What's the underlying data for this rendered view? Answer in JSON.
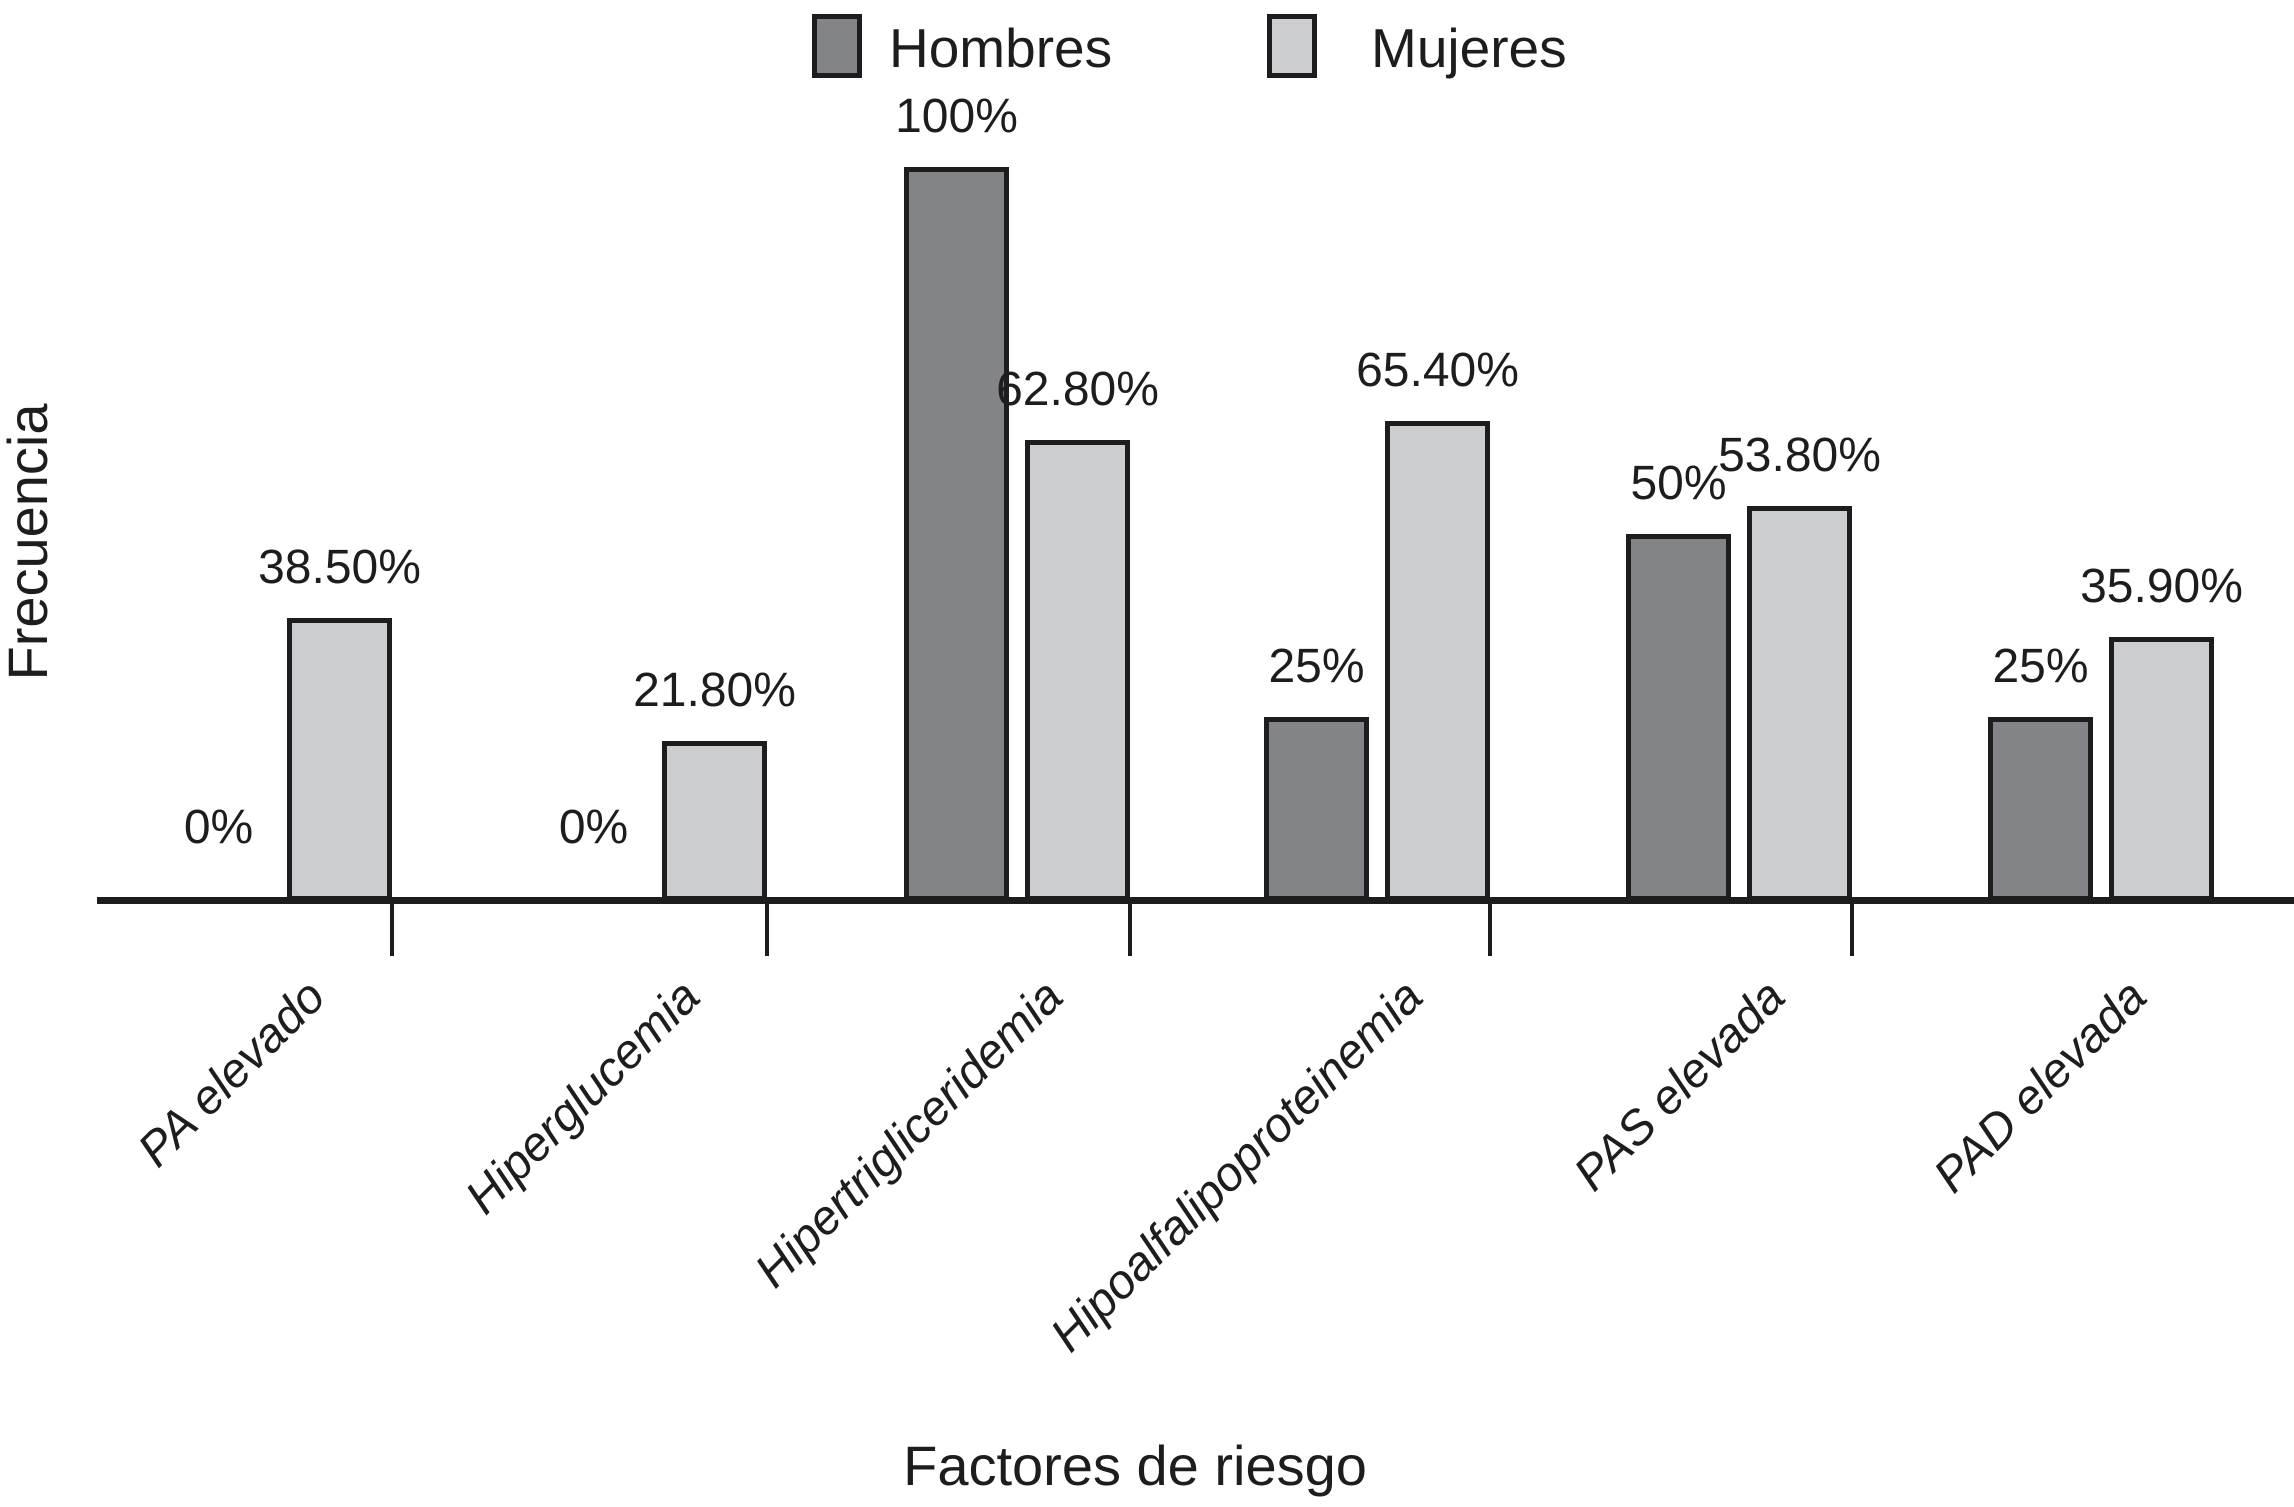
{
  "chart_data": {
    "type": "bar",
    "title": "",
    "categories": [
      "PA elevado",
      "Hiperglucemia",
      "Hipertrigliceridemia",
      "Hipoalfalipoproteinemia",
      "PAS elevada",
      "PAD elevada"
    ],
    "series": [
      {
        "name": "Hombres",
        "color": "#828487",
        "values": [
          0,
          0,
          100,
          25,
          50,
          25
        ],
        "value_labels": [
          "0%",
          "0%",
          "100%",
          "25%",
          "50%",
          "25%"
        ]
      },
      {
        "name": "Mujeres",
        "color": "#cbcdce",
        "values": [
          38.5,
          21.8,
          62.8,
          65.4,
          53.8,
          35.9
        ],
        "value_labels": [
          "38.50%",
          "21.80%",
          "62.80%",
          "65.40%",
          "53.80%",
          "35.90%"
        ]
      }
    ],
    "xlabel": "Factores de riesgo",
    "ylabel": "Frecuencia",
    "ylim": [
      0,
      100
    ],
    "grid": false,
    "legend_position": "top",
    "ink_color": "#1d1d1f",
    "background": "#ffffff"
  }
}
